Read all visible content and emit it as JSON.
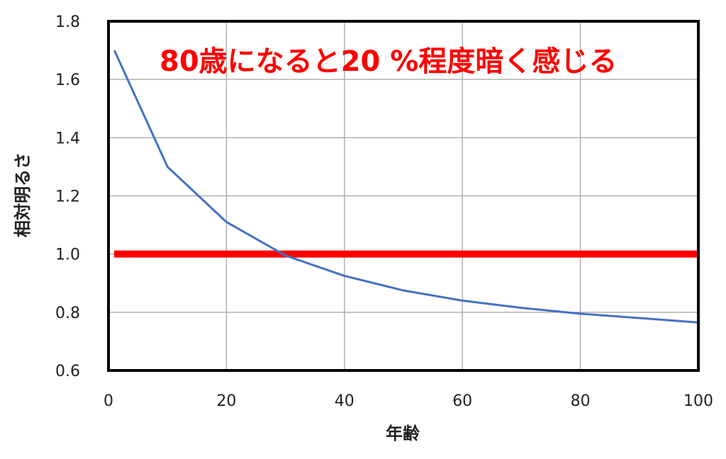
{
  "chart_data": {
    "type": "line",
    "title": "",
    "xlabel": "年齢",
    "ylabel": "相対明るさ",
    "xlim": [
      0,
      100
    ],
    "ylim": [
      0.6,
      1.8
    ],
    "xticks": [
      0,
      20,
      40,
      60,
      80,
      100
    ],
    "xtick_labels": [
      "0",
      "20",
      "40",
      "60",
      "80",
      "100"
    ],
    "yticks": [
      0.6,
      0.8,
      1.0,
      1.2,
      1.4,
      1.6,
      1.8
    ],
    "ytick_labels": [
      "0.6",
      "0.8",
      "1.0",
      "1.2",
      "1.4",
      "1.6",
      "1.8"
    ],
    "grid": true,
    "legend": "none",
    "series": [
      {
        "color": "#4472C4",
        "x": [
          1,
          10,
          20,
          30,
          40,
          50,
          60,
          70,
          80,
          90,
          100
        ],
        "y": [
          1.7,
          1.3,
          1.11,
          0.995,
          0.925,
          0.875,
          0.84,
          0.815,
          0.795,
          0.78,
          0.765
        ]
      }
    ],
    "reference_line": {
      "y": 1.0,
      "color": "#FF0000"
    },
    "annotation": {
      "text": "80歳になると20 %程度暗く感じる",
      "color": "#FF0000"
    }
  }
}
